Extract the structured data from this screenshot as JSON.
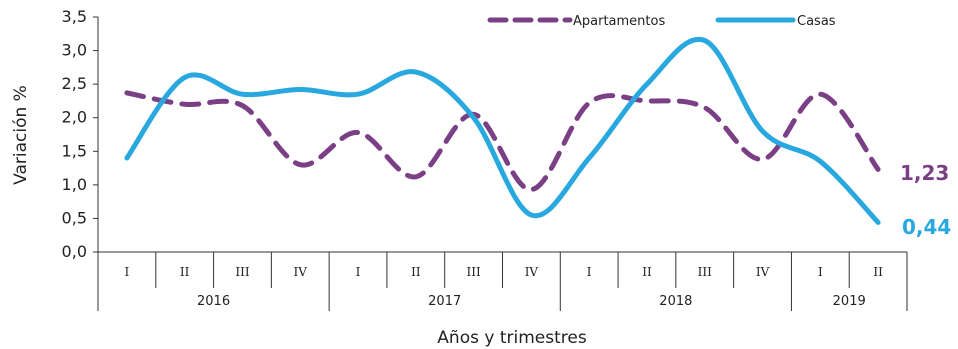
{
  "chart_data": {
    "type": "line",
    "title": "",
    "ylabel": "Variación %",
    "xlabel": "Años y trimestres",
    "ylim": [
      0,
      3.5
    ],
    "y_ticks": [
      "0,0",
      "0,5",
      "1,0",
      "1,5",
      "2,0",
      "2,5",
      "3,0",
      "3,5"
    ],
    "quarters": [
      "I",
      "II",
      "III",
      "IV",
      "I",
      "II",
      "III",
      "IV",
      "I",
      "II",
      "III",
      "IV",
      "I",
      "II"
    ],
    "years": [
      {
        "label": "2016",
        "span": 4
      },
      {
        "label": "2017",
        "span": 4
      },
      {
        "label": "2018",
        "span": 4
      },
      {
        "label": "2019",
        "span": 2
      }
    ],
    "legend_position": "top-right",
    "series": [
      {
        "name": "Apartamentos",
        "color": "#7b3f86",
        "style": "dashed",
        "values": [
          2.37,
          2.2,
          2.18,
          1.3,
          1.78,
          1.12,
          2.05,
          0.93,
          2.22,
          2.25,
          2.15,
          1.38,
          2.35,
          1.23
        ],
        "end_label": "1,23"
      },
      {
        "name": "Casas",
        "color": "#29a8df",
        "style": "solid",
        "values": [
          1.4,
          2.6,
          2.35,
          2.42,
          2.35,
          2.68,
          2.0,
          0.55,
          1.4,
          2.5,
          3.15,
          1.8,
          1.35,
          0.44
        ],
        "end_label": "0,44"
      }
    ]
  }
}
